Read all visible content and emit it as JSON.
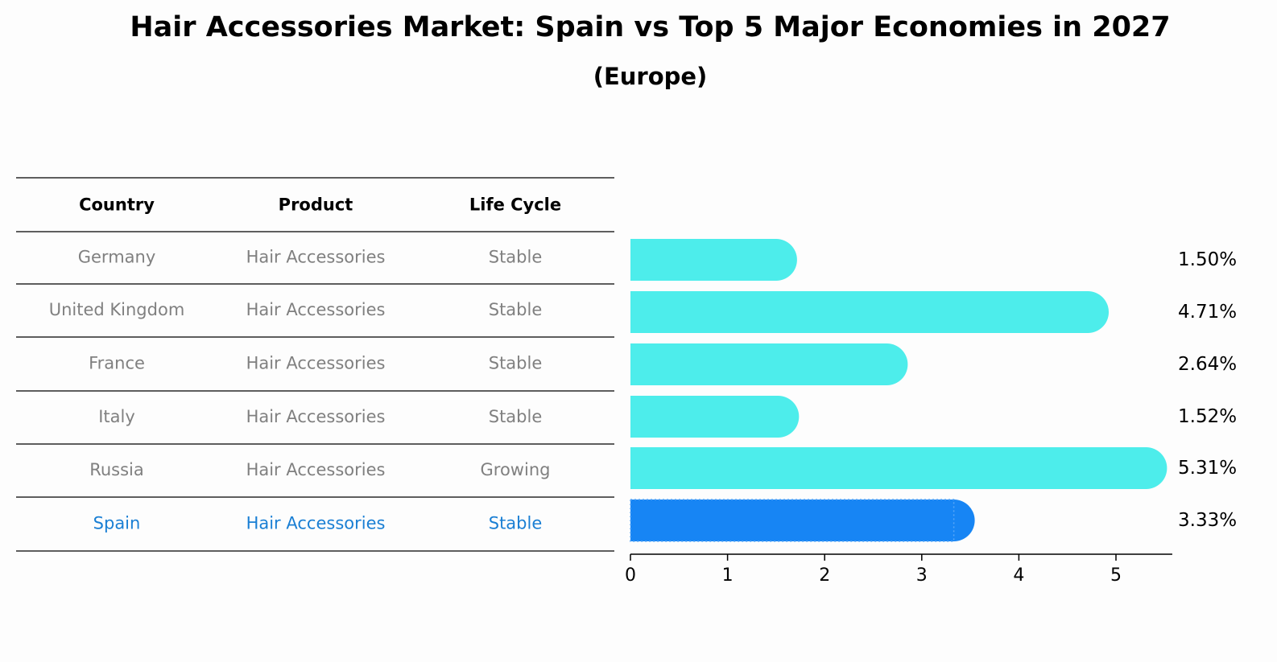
{
  "title": "Hair Accessories Market: Spain vs Top 5 Major Economies in 2027",
  "subtitle": "(Europe)",
  "table": {
    "headers": [
      "Country",
      "Product",
      "Life Cycle"
    ],
    "rows": [
      {
        "country": "Germany",
        "product": "Hair Accessories",
        "life_cycle": "Stable",
        "highlight": false
      },
      {
        "country": "United Kingdom",
        "product": "Hair Accessories",
        "life_cycle": "Stable",
        "highlight": false
      },
      {
        "country": "France",
        "product": "Hair Accessories",
        "life_cycle": "Stable",
        "highlight": false
      },
      {
        "country": "Italy",
        "product": "Hair Accessories",
        "life_cycle": "Stable",
        "highlight": false
      },
      {
        "country": "Russia",
        "product": "Hair Accessories",
        "life_cycle": "Growing",
        "highlight": false
      },
      {
        "country": "Spain",
        "product": "Hair Accessories",
        "life_cycle": "Stable",
        "highlight": true
      }
    ]
  },
  "colors": {
    "bar": "#4dedeb",
    "highlight_bar": "#1785f4",
    "highlight_text": "#1a7fd4",
    "muted_text": "#808080",
    "text": "#000000"
  },
  "chart_data": {
    "type": "bar",
    "orientation": "horizontal",
    "categories": [
      "Germany",
      "United Kingdom",
      "France",
      "Italy",
      "Russia",
      "Spain"
    ],
    "values": [
      1.5,
      4.71,
      2.64,
      1.52,
      5.31,
      3.33
    ],
    "value_labels": [
      "1.50%",
      "4.71%",
      "2.64%",
      "1.52%",
      "5.31%",
      "3.33%"
    ],
    "highlight": "Spain",
    "xlim": [
      0,
      5.58
    ],
    "xticks": [
      0,
      1,
      2,
      3,
      4,
      5
    ],
    "grid": false
  }
}
